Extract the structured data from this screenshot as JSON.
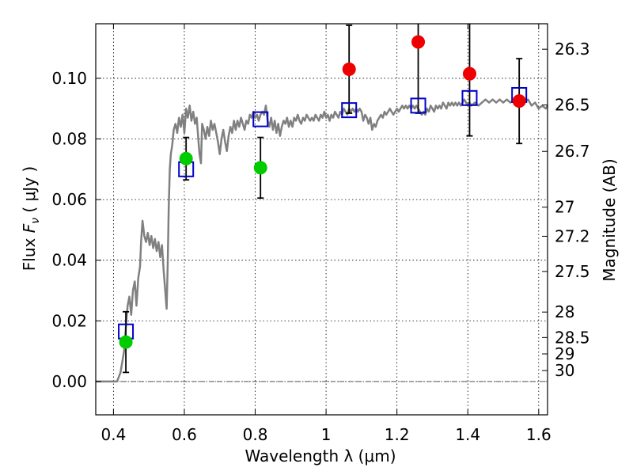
{
  "chart_data": {
    "type": "scatter",
    "xlabel": "Wavelength  λ (μm)",
    "ylabel_parts": [
      "Flux  ",
      "F",
      "ν",
      "  ( μJy )"
    ],
    "y2label": "Magnitude (AB)",
    "xlim": [
      0.35,
      1.625
    ],
    "ylim": [
      -0.011,
      0.118
    ],
    "grid": true,
    "x_ticks": [
      0.4,
      0.6,
      0.8,
      1.0,
      1.2,
      1.4,
      1.6
    ],
    "x_tick_labels": [
      "0.4",
      "0.6",
      "0.8",
      "1",
      "1.2",
      "1.4",
      "1.6"
    ],
    "y_ticks": [
      0.0,
      0.02,
      0.04,
      0.06,
      0.08,
      0.1
    ],
    "y_tick_labels": [
      "0.00",
      "0.02",
      "0.04",
      "0.06",
      "0.08",
      "0.10"
    ],
    "mag_ticks": [
      {
        "label": "26.3",
        "flux": 0.1096
      },
      {
        "label": "26.5",
        "flux": 0.0912
      },
      {
        "label": "26.7",
        "flux": 0.0759
      },
      {
        "label": "27",
        "flux": 0.0575
      },
      {
        "label": "27.2",
        "flux": 0.0479
      },
      {
        "label": "27.5",
        "flux": 0.0363
      },
      {
        "label": "28",
        "flux": 0.0229
      },
      {
        "label": "28.5",
        "flux": 0.0145
      },
      {
        "label": "29",
        "flux": 0.0091
      },
      {
        "label": "30",
        "flux": 0.0036
      }
    ],
    "zero_line": 0.0,
    "model_spectrum": {
      "color": "#808080",
      "points": [
        [
          0.35,
          0.0
        ],
        [
          0.41,
          0.0
        ],
        [
          0.42,
          0.003
        ],
        [
          0.43,
          0.01
        ],
        [
          0.435,
          0.018
        ],
        [
          0.44,
          0.025
        ],
        [
          0.445,
          0.028
        ],
        [
          0.45,
          0.022
        ],
        [
          0.455,
          0.03
        ],
        [
          0.46,
          0.033
        ],
        [
          0.465,
          0.025
        ],
        [
          0.47,
          0.034
        ],
        [
          0.475,
          0.038
        ],
        [
          0.478,
          0.046
        ],
        [
          0.482,
          0.053
        ],
        [
          0.487,
          0.048
        ],
        [
          0.492,
          0.046
        ],
        [
          0.497,
          0.049
        ],
        [
          0.502,
          0.045
        ],
        [
          0.507,
          0.048
        ],
        [
          0.512,
          0.044
        ],
        [
          0.517,
          0.047
        ],
        [
          0.522,
          0.043
        ],
        [
          0.527,
          0.046
        ],
        [
          0.532,
          0.041
        ],
        [
          0.537,
          0.045
        ],
        [
          0.542,
          0.036
        ],
        [
          0.546,
          0.03
        ],
        [
          0.55,
          0.024
        ],
        [
          0.553,
          0.038
        ],
        [
          0.556,
          0.058
        ],
        [
          0.559,
          0.07
        ],
        [
          0.562,
          0.075
        ],
        [
          0.566,
          0.078
        ],
        [
          0.57,
          0.083
        ],
        [
          0.575,
          0.085
        ],
        [
          0.58,
          0.082
        ],
        [
          0.585,
          0.087
        ],
        [
          0.59,
          0.084
        ],
        [
          0.595,
          0.088
        ],
        [
          0.6,
          0.082
        ],
        [
          0.605,
          0.09
        ],
        [
          0.61,
          0.087
        ],
        [
          0.615,
          0.091
        ],
        [
          0.62,
          0.086
        ],
        [
          0.625,
          0.089
        ],
        [
          0.63,
          0.085
        ],
        [
          0.635,
          0.087
        ],
        [
          0.64,
          0.079
        ],
        [
          0.643,
          0.075
        ],
        [
          0.647,
          0.072
        ],
        [
          0.65,
          0.085
        ],
        [
          0.655,
          0.083
        ],
        [
          0.66,
          0.08
        ],
        [
          0.665,
          0.084
        ],
        [
          0.67,
          0.081
        ],
        [
          0.675,
          0.086
        ],
        [
          0.68,
          0.083
        ],
        [
          0.685,
          0.085
        ],
        [
          0.69,
          0.082
        ],
        [
          0.695,
          0.079
        ],
        [
          0.7,
          0.075
        ],
        [
          0.705,
          0.08
        ],
        [
          0.71,
          0.083
        ],
        [
          0.715,
          0.079
        ],
        [
          0.72,
          0.076
        ],
        [
          0.725,
          0.081
        ],
        [
          0.73,
          0.084
        ],
        [
          0.735,
          0.082
        ],
        [
          0.74,
          0.086
        ],
        [
          0.745,
          0.083
        ],
        [
          0.75,
          0.086
        ],
        [
          0.755,
          0.084
        ],
        [
          0.76,
          0.087
        ],
        [
          0.765,
          0.085
        ],
        [
          0.77,
          0.083
        ],
        [
          0.775,
          0.086
        ],
        [
          0.78,
          0.085
        ],
        [
          0.785,
          0.088
        ],
        [
          0.79,
          0.087
        ],
        [
          0.795,
          0.089
        ],
        [
          0.8,
          0.087
        ],
        [
          0.805,
          0.088
        ],
        [
          0.81,
          0.086
        ],
        [
          0.815,
          0.088
        ],
        [
          0.82,
          0.089
        ],
        [
          0.825,
          0.088
        ],
        [
          0.83,
          0.091
        ],
        [
          0.835,
          0.086
        ],
        [
          0.84,
          0.084
        ],
        [
          0.845,
          0.087
        ],
        [
          0.85,
          0.083
        ],
        [
          0.855,
          0.086
        ],
        [
          0.86,
          0.082
        ],
        [
          0.865,
          0.085
        ],
        [
          0.87,
          0.081
        ],
        [
          0.875,
          0.084
        ],
        [
          0.88,
          0.086
        ],
        [
          0.885,
          0.085
        ],
        [
          0.89,
          0.087
        ],
        [
          0.895,
          0.084
        ],
        [
          0.9,
          0.086
        ],
        [
          0.905,
          0.084
        ],
        [
          0.91,
          0.087
        ],
        [
          0.915,
          0.086
        ],
        [
          0.92,
          0.088
        ],
        [
          0.925,
          0.086
        ],
        [
          0.93,
          0.085
        ],
        [
          0.935,
          0.087
        ],
        [
          0.94,
          0.086
        ],
        [
          0.945,
          0.088
        ],
        [
          0.95,
          0.087
        ],
        [
          0.955,
          0.086
        ],
        [
          0.96,
          0.087
        ],
        [
          0.965,
          0.086
        ],
        [
          0.97,
          0.088
        ],
        [
          0.975,
          0.087
        ],
        [
          0.98,
          0.086
        ],
        [
          0.985,
          0.088
        ],
        [
          0.99,
          0.087
        ],
        [
          0.995,
          0.089
        ],
        [
          1.0,
          0.087
        ],
        [
          1.005,
          0.088
        ],
        [
          1.01,
          0.086
        ],
        [
          1.015,
          0.088
        ],
        [
          1.02,
          0.087
        ],
        [
          1.025,
          0.089
        ],
        [
          1.03,
          0.088
        ],
        [
          1.035,
          0.087
        ],
        [
          1.04,
          0.089
        ],
        [
          1.045,
          0.088
        ],
        [
          1.05,
          0.09
        ],
        [
          1.055,
          0.089
        ],
        [
          1.06,
          0.088
        ],
        [
          1.065,
          0.09
        ],
        [
          1.07,
          0.089
        ],
        [
          1.075,
          0.09
        ],
        [
          1.08,
          0.089
        ],
        [
          1.085,
          0.09
        ],
        [
          1.09,
          0.089
        ],
        [
          1.095,
          0.09
        ],
        [
          1.1,
          0.089
        ],
        [
          1.105,
          0.086
        ],
        [
          1.11,
          0.088
        ],
        [
          1.115,
          0.087
        ],
        [
          1.12,
          0.085
        ],
        [
          1.125,
          0.087
        ],
        [
          1.13,
          0.083
        ],
        [
          1.135,
          0.085
        ],
        [
          1.14,
          0.084
        ],
        [
          1.145,
          0.086
        ],
        [
          1.15,
          0.087
        ],
        [
          1.155,
          0.088
        ],
        [
          1.16,
          0.087
        ],
        [
          1.165,
          0.089
        ],
        [
          1.17,
          0.088
        ],
        [
          1.175,
          0.089
        ],
        [
          1.18,
          0.09
        ],
        [
          1.185,
          0.089
        ],
        [
          1.19,
          0.088
        ],
        [
          1.195,
          0.089
        ],
        [
          1.2,
          0.09
        ],
        [
          1.205,
          0.089
        ],
        [
          1.21,
          0.09
        ],
        [
          1.215,
          0.091
        ],
        [
          1.22,
          0.09
        ],
        [
          1.225,
          0.091
        ],
        [
          1.23,
          0.09
        ],
        [
          1.235,
          0.091
        ],
        [
          1.24,
          0.09
        ],
        [
          1.245,
          0.091
        ],
        [
          1.25,
          0.09
        ],
        [
          1.255,
          0.091
        ],
        [
          1.26,
          0.09
        ],
        [
          1.265,
          0.089
        ],
        [
          1.27,
          0.088
        ],
        [
          1.275,
          0.089
        ],
        [
          1.28,
          0.088
        ],
        [
          1.285,
          0.09
        ],
        [
          1.29,
          0.089
        ],
        [
          1.295,
          0.091
        ],
        [
          1.3,
          0.09
        ],
        [
          1.305,
          0.089
        ],
        [
          1.31,
          0.091
        ],
        [
          1.315,
          0.09
        ],
        [
          1.32,
          0.091
        ],
        [
          1.325,
          0.09
        ],
        [
          1.33,
          0.092
        ],
        [
          1.335,
          0.091
        ],
        [
          1.34,
          0.09
        ],
        [
          1.345,
          0.092
        ],
        [
          1.35,
          0.091
        ],
        [
          1.355,
          0.092
        ],
        [
          1.36,
          0.091
        ],
        [
          1.365,
          0.092
        ],
        [
          1.37,
          0.091
        ],
        [
          1.375,
          0.092
        ],
        [
          1.38,
          0.091
        ],
        [
          1.385,
          0.092
        ],
        [
          1.39,
          0.093
        ],
        [
          1.395,
          0.092
        ],
        [
          1.4,
          0.091
        ],
        [
          1.405,
          0.092
        ],
        [
          1.41,
          0.091
        ],
        [
          1.42,
          0.092
        ],
        [
          1.43,
          0.091
        ],
        [
          1.44,
          0.092
        ],
        [
          1.45,
          0.093
        ],
        [
          1.46,
          0.092
        ],
        [
          1.47,
          0.093
        ],
        [
          1.48,
          0.092
        ],
        [
          1.49,
          0.093
        ],
        [
          1.5,
          0.092
        ],
        [
          1.51,
          0.093
        ],
        [
          1.52,
          0.092
        ],
        [
          1.53,
          0.093
        ],
        [
          1.54,
          0.092
        ],
        [
          1.55,
          0.093
        ],
        [
          1.56,
          0.092
        ],
        [
          1.57,
          0.093
        ],
        [
          1.58,
          0.091
        ],
        [
          1.59,
          0.092
        ],
        [
          1.6,
          0.09
        ],
        [
          1.61,
          0.091
        ],
        [
          1.62,
          0.09
        ],
        [
          1.625,
          0.091
        ]
      ]
    },
    "series": [
      {
        "marker": "square",
        "color": "#0000cc",
        "points": [
          {
            "x": 0.435,
            "y": 0.0165
          },
          {
            "x": 0.605,
            "y": 0.07
          },
          {
            "x": 0.815,
            "y": 0.0865
          },
          {
            "x": 1.065,
            "y": 0.0895
          },
          {
            "x": 1.26,
            "y": 0.091
          },
          {
            "x": 1.405,
            "y": 0.0935
          },
          {
            "x": 1.545,
            "y": 0.0945
          }
        ]
      },
      {
        "marker": "circle",
        "color": "#00cc00",
        "points": [
          {
            "x": 0.435,
            "y": 0.013,
            "err": 0.01
          },
          {
            "x": 0.605,
            "y": 0.0735,
            "err": 0.007
          },
          {
            "x": 0.815,
            "y": 0.0705,
            "err": 0.01
          }
        ]
      },
      {
        "marker": "circle",
        "color": "#ee0000",
        "points": [
          {
            "x": 1.065,
            "y": 0.103,
            "err": 0.0145
          },
          {
            "x": 1.26,
            "y": 0.112,
            "err": 0.0235
          },
          {
            "x": 1.405,
            "y": 0.1015,
            "err": 0.0205
          },
          {
            "x": 1.545,
            "y": 0.0925,
            "err": 0.014
          }
        ]
      }
    ]
  }
}
